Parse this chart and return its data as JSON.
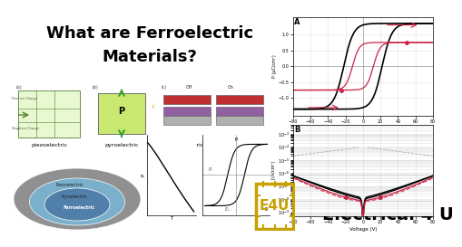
{
  "bg_color": "#ffffff",
  "title_line1": "What are Ferroelectric",
  "title_line2": "Materials?",
  "title_color": "#000000",
  "title_fontsize": 13,
  "plot_A_label": "A",
  "plot_B_label": "B",
  "xlabel": "Voltage (V)",
  "ylabel_A": "P (μC/cm²)",
  "ylabel_B": "J (A/cm²)",
  "x_ticks": [
    -80,
    -60,
    -40,
    -20,
    0,
    20,
    40,
    60,
    80
  ],
  "yticks_A": [
    -1.0,
    -0.5,
    0.0,
    0.5,
    1.0
  ],
  "brand_text": "Electrical 4 U",
  "logo_text": "E4U",
  "logo_bg": "#2a2000",
  "logo_border": "#c8a000",
  "logo_text_color": "#c8a000",
  "brand_color": "#000000",
  "ellipse_colors": [
    "#909090",
    "#7ab0cc",
    "#5080aa"
  ],
  "ellipse_labels": [
    "Piezoelectric",
    "Pyroelectric",
    "Ferroelectric"
  ],
  "diag_labels_bottom": [
    "piezoelectric",
    "pyroelectric",
    "ferroelectric"
  ],
  "diag_labels_top": [
    "(a)",
    "(b)",
    "(c)",
    "Off",
    "On"
  ]
}
